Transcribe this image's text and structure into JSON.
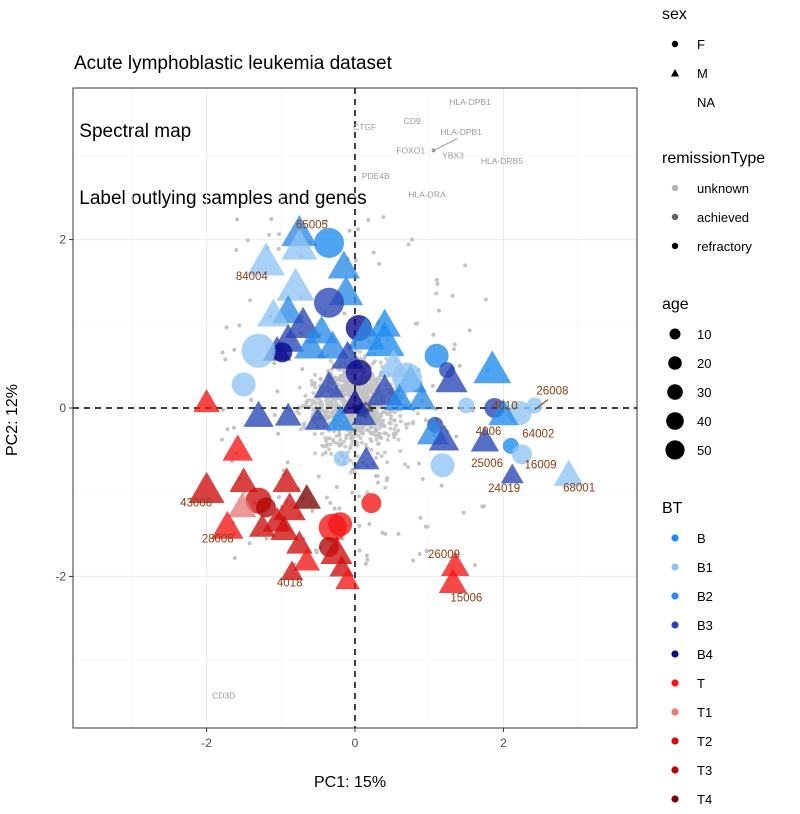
{
  "title_lines": [
    "Acute lymphoblastic leukemia dataset",
    " Spectral map",
    " Label outlying samples and genes"
  ],
  "colors": {
    "B": "#1f8cf0",
    "B1": "#8ec4f4",
    "B2": "#2c8ae8",
    "B3": "#2845b5",
    "B4": "#08088c",
    "T": "#f51515",
    "T1": "#e57a7a",
    "T2": "#cf0d0d",
    "T3": "#b00606",
    "T4": "#7c0303",
    "gene": "#c2c2c2",
    "gene_label": "#9a9a9a",
    "sample_label": "#8b3d10"
  },
  "chart_data": {
    "type": "scatter",
    "title": "Acute lymphoblastic leukemia dataset\n Spectral map\n Label outlying samples and genes",
    "xlabel": "PC1: 15%",
    "ylabel": "PC2: 12%",
    "xlim": [
      -3.8,
      3.8
    ],
    "ylim": [
      -3.8,
      3.8
    ],
    "xticks": [
      -2,
      0,
      2
    ],
    "yticks": [
      -2,
      0,
      2
    ],
    "grid": true,
    "reference_lines": {
      "x": 0,
      "y": 0,
      "style": "dashed"
    },
    "gene_labels": [
      {
        "label": "HLA-DPB1",
        "x": 1.55,
        "y": 3.6
      },
      {
        "label": "CD9",
        "x": 0.77,
        "y": 3.37
      },
      {
        "label": "CTGF",
        "x": 0.13,
        "y": 3.3
      },
      {
        "label": "HLA-DPB1",
        "x": 1.43,
        "y": 3.24
      },
      {
        "label": "FOXO1",
        "x": 0.75,
        "y": 3.02
      },
      {
        "label": "YBX3",
        "x": 1.32,
        "y": 2.96
      },
      {
        "label": "HLA-DRB5",
        "x": 1.98,
        "y": 2.9
      },
      {
        "label": "PDE4B",
        "x": 0.28,
        "y": 2.72
      },
      {
        "label": "HLA-DRA",
        "x": 0.97,
        "y": 2.5
      },
      {
        "label": "CD3D",
        "x": -1.77,
        "y": -3.45
      }
    ],
    "sample_labels": [
      {
        "label": "65005",
        "x": -0.58,
        "y": 2.13
      },
      {
        "label": "84004",
        "x": -1.39,
        "y": 1.52
      },
      {
        "label": "26008",
        "x": 2.66,
        "y": 0.16
      },
      {
        "label": "4010",
        "x": 2.02,
        "y": -0.02
      },
      {
        "label": "4006",
        "x": 1.8,
        "y": -0.32
      },
      {
        "label": "64002",
        "x": 2.47,
        "y": -0.35
      },
      {
        "label": "25006",
        "x": 1.78,
        "y": -0.7
      },
      {
        "label": "16009",
        "x": 2.5,
        "y": -0.72
      },
      {
        "label": "24019",
        "x": 2.01,
        "y": -1.0
      },
      {
        "label": "68001",
        "x": 3.02,
        "y": -0.99
      },
      {
        "label": "43006",
        "x": -2.14,
        "y": -1.17
      },
      {
        "label": "28008",
        "x": -1.85,
        "y": -1.6
      },
      {
        "label": "4018",
        "x": -0.88,
        "y": -2.12
      },
      {
        "label": "26009",
        "x": 1.2,
        "y": -1.78
      },
      {
        "label": "15006",
        "x": 1.5,
        "y": -2.3
      }
    ],
    "samples": [
      {
        "x": -0.75,
        "y": 2.07,
        "bt": "B2",
        "shape": "triangle",
        "size": 38
      },
      {
        "x": -0.35,
        "y": 1.96,
        "bt": "B",
        "shape": "circle",
        "size": 30
      },
      {
        "x": -0.75,
        "y": 1.91,
        "bt": "B1",
        "shape": "triangle",
        "size": 38
      },
      {
        "x": -1.2,
        "y": 1.73,
        "bt": "B1",
        "shape": "triangle",
        "size": 40
      },
      {
        "x": -0.15,
        "y": 1.67,
        "bt": "B2",
        "shape": "triangle",
        "size": 34
      },
      {
        "x": -0.8,
        "y": 1.43,
        "bt": "B1",
        "shape": "triangle",
        "size": 40
      },
      {
        "x": -0.12,
        "y": 1.36,
        "bt": "B2",
        "shape": "triangle",
        "size": 36
      },
      {
        "x": -0.35,
        "y": 1.25,
        "bt": "B3",
        "shape": "circle",
        "size": 30
      },
      {
        "x": -0.9,
        "y": 1.14,
        "bt": "B2",
        "shape": "triangle",
        "size": 34
      },
      {
        "x": -1.1,
        "y": 1.1,
        "bt": "B1",
        "shape": "triangle",
        "size": 34
      },
      {
        "x": -0.7,
        "y": 0.98,
        "bt": "B3",
        "shape": "triangle",
        "size": 38
      },
      {
        "x": 0.05,
        "y": 0.95,
        "bt": "B4",
        "shape": "circle",
        "size": 26
      },
      {
        "x": 0.4,
        "y": 0.98,
        "bt": "B",
        "shape": "triangle",
        "size": 34
      },
      {
        "x": -0.45,
        "y": 0.9,
        "bt": "B2",
        "shape": "triangle",
        "size": 34
      },
      {
        "x": 0.15,
        "y": 0.85,
        "bt": "B2",
        "shape": "triangle",
        "size": 40
      },
      {
        "x": 0.4,
        "y": 0.78,
        "bt": "B",
        "shape": "triangle",
        "size": 42
      },
      {
        "x": -0.9,
        "y": 0.8,
        "bt": "B3",
        "shape": "triangle",
        "size": 34
      },
      {
        "x": -0.6,
        "y": 0.72,
        "bt": "B2",
        "shape": "triangle",
        "size": 34
      },
      {
        "x": -0.3,
        "y": 0.72,
        "bt": "B2",
        "shape": "triangle",
        "size": 34
      },
      {
        "x": -1.05,
        "y": 0.68,
        "bt": "B3",
        "shape": "triangle",
        "size": 30
      },
      {
        "x": -0.98,
        "y": 0.66,
        "bt": "B4",
        "shape": "circle",
        "size": 20
      },
      {
        "x": -1.3,
        "y": 0.68,
        "bt": "B1",
        "shape": "circle",
        "size": 34
      },
      {
        "x": -0.1,
        "y": 0.6,
        "bt": "B3",
        "shape": "triangle",
        "size": 34
      },
      {
        "x": 0.52,
        "y": 0.5,
        "bt": "B1",
        "shape": "triangle",
        "size": 34
      },
      {
        "x": 1.1,
        "y": 0.62,
        "bt": "B",
        "shape": "circle",
        "size": 24
      },
      {
        "x": 1.85,
        "y": 0.45,
        "bt": "B",
        "shape": "triangle",
        "size": 40
      },
      {
        "x": 1.24,
        "y": 0.45,
        "bt": "B3",
        "shape": "circle",
        "size": 16
      },
      {
        "x": 0.05,
        "y": 0.42,
        "bt": "B4",
        "shape": "circle",
        "size": 26
      },
      {
        "x": 0.75,
        "y": 0.32,
        "bt": "B",
        "shape": "triangle",
        "size": 34
      },
      {
        "x": 0.7,
        "y": 0.36,
        "bt": "B1",
        "shape": "circle",
        "size": 30
      },
      {
        "x": 1.3,
        "y": 0.32,
        "bt": "B3",
        "shape": "triangle",
        "size": 34
      },
      {
        "x": -1.5,
        "y": 0.28,
        "bt": "B1",
        "shape": "circle",
        "size": 24
      },
      {
        "x": -0.35,
        "y": 0.25,
        "bt": "B3",
        "shape": "triangle",
        "size": 32
      },
      {
        "x": 0.4,
        "y": 0.18,
        "bt": "B3",
        "shape": "triangle",
        "size": 38
      },
      {
        "x": 0.0,
        "y": 0.05,
        "bt": "B4",
        "shape": "triangle",
        "size": 30
      },
      {
        "x": 0.6,
        "y": 0.1,
        "bt": "B",
        "shape": "triangle",
        "size": 32
      },
      {
        "x": 0.9,
        "y": 0.1,
        "bt": "B2",
        "shape": "triangle",
        "size": 30
      },
      {
        "x": 1.5,
        "y": 0.03,
        "bt": "B1",
        "shape": "circle",
        "size": 16
      },
      {
        "x": 2.42,
        "y": 0.03,
        "bt": "B1",
        "shape": "circle",
        "size": 16
      },
      {
        "x": 1.88,
        "y": 0.0,
        "bt": "B3",
        "shape": "circle",
        "size": 20
      },
      {
        "x": 2.22,
        "y": -0.06,
        "bt": "B1",
        "shape": "circle",
        "size": 24
      },
      {
        "x": 2.0,
        "y": -0.08,
        "bt": "B",
        "shape": "triangle",
        "size": 32
      },
      {
        "x": -1.3,
        "y": -0.1,
        "bt": "B3",
        "shape": "triangle",
        "size": 32
      },
      {
        "x": -0.9,
        "y": -0.1,
        "bt": "B3",
        "shape": "triangle",
        "size": 28
      },
      {
        "x": -0.5,
        "y": -0.15,
        "bt": "B3",
        "shape": "triangle",
        "size": 28
      },
      {
        "x": -0.2,
        "y": -0.15,
        "bt": "B",
        "shape": "triangle",
        "size": 30
      },
      {
        "x": 0.12,
        "y": -0.1,
        "bt": "B3",
        "shape": "triangle",
        "size": 26
      },
      {
        "x": 1.08,
        "y": -0.2,
        "bt": "B3",
        "shape": "circle",
        "size": 16
      },
      {
        "x": 1.05,
        "y": -0.3,
        "bt": "B2",
        "shape": "triangle",
        "size": 34
      },
      {
        "x": 1.2,
        "y": -0.38,
        "bt": "B3",
        "shape": "triangle",
        "size": 32
      },
      {
        "x": 1.75,
        "y": -0.4,
        "bt": "B3",
        "shape": "triangle",
        "size": 30
      },
      {
        "x": 2.1,
        "y": -0.45,
        "bt": "B",
        "shape": "circle",
        "size": 16
      },
      {
        "x": 2.25,
        "y": -0.55,
        "bt": "B1",
        "shape": "circle",
        "size": 20
      },
      {
        "x": -0.18,
        "y": -0.6,
        "bt": "B1",
        "shape": "circle",
        "size": 16
      },
      {
        "x": 0.15,
        "y": -0.62,
        "bt": "B3",
        "shape": "triangle",
        "size": 28
      },
      {
        "x": 1.18,
        "y": -0.68,
        "bt": "B1",
        "shape": "circle",
        "size": 24
      },
      {
        "x": 2.12,
        "y": -0.8,
        "bt": "B3",
        "shape": "triangle",
        "size": 24
      },
      {
        "x": 2.88,
        "y": -0.8,
        "bt": "B1",
        "shape": "triangle",
        "size": 32
      },
      {
        "x": -2.0,
        "y": 0.06,
        "bt": "T",
        "shape": "triangle",
        "size": 28
      },
      {
        "x": -1.58,
        "y": -0.5,
        "bt": "T",
        "shape": "triangle",
        "size": 32
      },
      {
        "x": -2.0,
        "y": -0.98,
        "bt": "T2",
        "shape": "triangle",
        "size": 38
      },
      {
        "x": -1.5,
        "y": -0.88,
        "bt": "T2",
        "shape": "triangle",
        "size": 30
      },
      {
        "x": -0.92,
        "y": -0.88,
        "bt": "T2",
        "shape": "triangle",
        "size": 30
      },
      {
        "x": -1.3,
        "y": -1.1,
        "bt": "T2",
        "shape": "circle",
        "size": 26
      },
      {
        "x": -1.2,
        "y": -1.18,
        "bt": "T3",
        "shape": "circle",
        "size": 20
      },
      {
        "x": -0.65,
        "y": -1.08,
        "bt": "T4",
        "shape": "triangle",
        "size": 30
      },
      {
        "x": -1.52,
        "y": -1.18,
        "bt": "T1",
        "shape": "triangle",
        "size": 30
      },
      {
        "x": 0.22,
        "y": -1.13,
        "bt": "T",
        "shape": "circle",
        "size": 20
      },
      {
        "x": -0.88,
        "y": -1.2,
        "bt": "T2",
        "shape": "triangle",
        "size": 34
      },
      {
        "x": -1.05,
        "y": -1.35,
        "bt": "T2",
        "shape": "triangle",
        "size": 30
      },
      {
        "x": -1.72,
        "y": -1.42,
        "bt": "T",
        "shape": "triangle",
        "size": 34
      },
      {
        "x": -1.25,
        "y": -1.42,
        "bt": "T2",
        "shape": "triangle",
        "size": 28
      },
      {
        "x": -0.95,
        "y": -1.45,
        "bt": "T2",
        "shape": "triangle",
        "size": 30
      },
      {
        "x": -0.2,
        "y": -1.38,
        "bt": "T",
        "shape": "circle",
        "size": 24
      },
      {
        "x": -0.3,
        "y": -1.42,
        "bt": "T",
        "shape": "circle",
        "size": 28
      },
      {
        "x": -0.75,
        "y": -1.62,
        "bt": "T2",
        "shape": "triangle",
        "size": 28
      },
      {
        "x": -0.35,
        "y": -1.65,
        "bt": "T3",
        "shape": "circle",
        "size": 20
      },
      {
        "x": -0.25,
        "y": -1.72,
        "bt": "T2",
        "shape": "triangle",
        "size": 34
      },
      {
        "x": -0.65,
        "y": -1.82,
        "bt": "T",
        "shape": "triangle",
        "size": 28
      },
      {
        "x": -0.18,
        "y": -1.9,
        "bt": "T2",
        "shape": "triangle",
        "size": 26
      },
      {
        "x": -0.85,
        "y": -1.95,
        "bt": "T2",
        "shape": "triangle",
        "size": 24
      },
      {
        "x": -0.1,
        "y": -2.05,
        "bt": "T",
        "shape": "triangle",
        "size": 26
      },
      {
        "x": 1.35,
        "y": -1.88,
        "bt": "T",
        "shape": "triangle",
        "size": 30
      },
      {
        "x": 1.32,
        "y": -2.08,
        "bt": "T",
        "shape": "triangle",
        "size": 30
      }
    ]
  },
  "legend": {
    "sex": {
      "title": "sex",
      "items": [
        "F",
        "M",
        "NA"
      ]
    },
    "remissionType": {
      "title": "remissionType",
      "items": [
        "unknown",
        "achieved",
        "refractory"
      ]
    },
    "age": {
      "title": "age",
      "items": [
        "10",
        "20",
        "30",
        "40",
        "50"
      ]
    },
    "bt": {
      "title": "BT",
      "items": [
        "B",
        "B1",
        "B2",
        "B3",
        "B4",
        "T",
        "T1",
        "T2",
        "T3",
        "T4"
      ]
    }
  }
}
